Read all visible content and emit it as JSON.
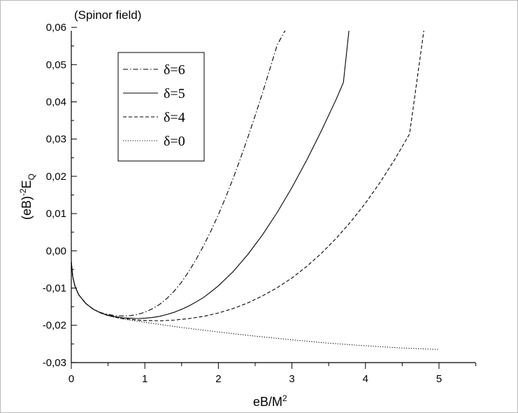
{
  "chart_data": {
    "type": "line",
    "title": "(Spinor field)",
    "xlabel": {
      "main": "eB/M",
      "sup": "2"
    },
    "ylabel": {
      "pre": "(eB)",
      "sup": "-2",
      "main": "E",
      "sub": "Q"
    },
    "xlim": [
      0,
      5.5
    ],
    "ylim": [
      -0.03,
      0.06
    ],
    "x_ticks": [
      0,
      1,
      2,
      3,
      4,
      5
    ],
    "x_tick_labels": [
      "0",
      "1",
      "2",
      "3",
      "4",
      "5"
    ],
    "y_ticks": [
      -0.03,
      -0.02,
      -0.01,
      0.0,
      0.01,
      0.02,
      0.03,
      0.04,
      0.05,
      0.06
    ],
    "y_tick_labels": [
      "-0,03",
      "-0,02",
      "-0,01",
      "0,00",
      "0,01",
      "0,02",
      "0,03",
      "0,04",
      "0,05",
      "0,06"
    ],
    "grid": false,
    "legend_position": "top-left",
    "series": [
      {
        "name": "δ=6",
        "dash": "dashdot",
        "x": [
          0.0,
          0.02,
          0.05,
          0.1,
          0.2,
          0.3,
          0.4,
          0.5,
          0.6,
          0.7,
          0.8,
          0.9,
          1.0,
          1.1,
          1.2,
          1.3,
          1.4,
          1.5,
          1.6,
          1.7,
          1.8,
          1.9,
          2.0,
          2.1,
          2.2,
          2.3,
          2.4,
          2.5,
          2.6,
          2.7,
          2.8,
          2.9,
          2.95
        ],
        "y": [
          -0.003,
          -0.007,
          -0.0095,
          -0.0118,
          -0.0142,
          -0.0157,
          -0.0166,
          -0.0171,
          -0.0174,
          -0.0175,
          -0.0174,
          -0.0171,
          -0.0165,
          -0.0156,
          -0.0144,
          -0.0128,
          -0.0108,
          -0.0084,
          -0.0055,
          -0.0022,
          0.0014,
          0.0054,
          0.0097,
          0.0144,
          0.0194,
          0.0248,
          0.0304,
          0.0363,
          0.0424,
          0.0488,
          0.0553,
          0.0589,
          0.06
        ]
      },
      {
        "name": "δ=5",
        "dash": "solid",
        "x": [
          0.0,
          0.02,
          0.05,
          0.1,
          0.2,
          0.3,
          0.4,
          0.5,
          0.6,
          0.7,
          0.8,
          0.9,
          1.0,
          1.1,
          1.2,
          1.3,
          1.4,
          1.5,
          1.6,
          1.7,
          1.8,
          1.9,
          2.0,
          2.2,
          2.4,
          2.6,
          2.8,
          3.0,
          3.2,
          3.4,
          3.6,
          3.7,
          3.78
        ],
        "y": [
          -0.003,
          -0.007,
          -0.0095,
          -0.0118,
          -0.0142,
          -0.0157,
          -0.0167,
          -0.0173,
          -0.0177,
          -0.018,
          -0.0181,
          -0.0182,
          -0.0181,
          -0.0179,
          -0.0176,
          -0.0171,
          -0.0165,
          -0.0157,
          -0.0148,
          -0.0137,
          -0.0125,
          -0.011,
          -0.0094,
          -0.0056,
          -0.001,
          0.0043,
          0.0103,
          0.017,
          0.0243,
          0.0322,
          0.0406,
          0.0452,
          0.06
        ]
      },
      {
        "name": "δ=4",
        "dash": "dashed",
        "x": [
          0.0,
          0.02,
          0.05,
          0.1,
          0.2,
          0.3,
          0.4,
          0.5,
          0.6,
          0.7,
          0.8,
          0.9,
          1.0,
          1.2,
          1.4,
          1.6,
          1.8,
          2.0,
          2.2,
          2.4,
          2.6,
          2.8,
          3.0,
          3.2,
          3.4,
          3.6,
          3.8,
          4.0,
          4.2,
          4.4,
          4.6,
          4.8
        ],
        "y": [
          -0.003,
          -0.007,
          -0.0095,
          -0.0118,
          -0.0142,
          -0.0157,
          -0.0167,
          -0.0174,
          -0.0178,
          -0.0182,
          -0.0184,
          -0.0186,
          -0.0187,
          -0.0188,
          -0.0186,
          -0.0182,
          -0.0176,
          -0.0167,
          -0.0155,
          -0.014,
          -0.0121,
          -0.0099,
          -0.0073,
          -0.0042,
          -0.0007,
          0.0033,
          0.0078,
          0.0128,
          0.0184,
          0.0246,
          0.0314,
          0.06
        ]
      },
      {
        "name": "δ=0",
        "dash": "dotted",
        "x": [
          0.0,
          0.02,
          0.05,
          0.1,
          0.2,
          0.3,
          0.4,
          0.5,
          0.6,
          0.7,
          0.8,
          0.9,
          1.0,
          1.25,
          1.5,
          1.75,
          2.0,
          2.5,
          3.0,
          3.5,
          4.0,
          4.5,
          5.0
        ],
        "y": [
          -0.003,
          -0.007,
          -0.0095,
          -0.0118,
          -0.0142,
          -0.0157,
          -0.0167,
          -0.0174,
          -0.0179,
          -0.0183,
          -0.0186,
          -0.0189,
          -0.0192,
          -0.0199,
          -0.0206,
          -0.0212,
          -0.0218,
          -0.0229,
          -0.0239,
          -0.0248,
          -0.0255,
          -0.0261,
          -0.0265
        ]
      }
    ]
  }
}
